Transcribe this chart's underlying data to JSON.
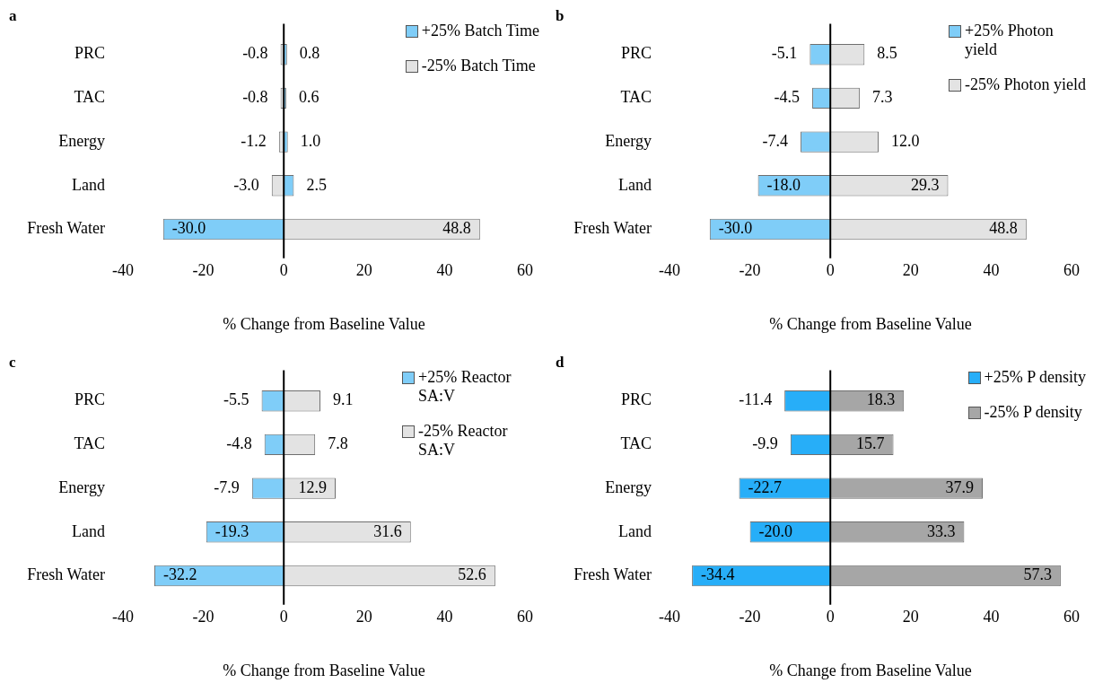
{
  "chart_data": [
    {
      "type": "bar",
      "title": "a",
      "xlabel": "% Change from Baseline Value",
      "orientation": "horizontal",
      "stacked": true,
      "categories": [
        "PRC",
        "TAC",
        "Energy",
        "Land",
        "Fresh Water"
      ],
      "series": [
        {
          "name": "+25% Batch Time",
          "color": "#7fcdf8",
          "values": [
            0.8,
            0.6,
            1.0,
            2.5,
            -30.0
          ],
          "value_labels": [
            "0.8",
            "0.6",
            "1.0",
            "2.5",
            "-30.0"
          ]
        },
        {
          "name": "-25% Batch Time",
          "color": "#e3e3e3",
          "values": [
            -0.8,
            -0.8,
            -1.2,
            -3.0,
            48.8
          ],
          "value_labels": [
            "-0.8",
            "-0.8",
            "-1.2",
            "-3.0",
            "48.8"
          ]
        }
      ],
      "xlim": [
        -40,
        60
      ],
      "xticks": [
        -40,
        -20,
        0,
        20,
        40,
        60
      ],
      "ref_lines": [
        {
          "axis": "x",
          "value": 0,
          "color": "#000000"
        }
      ],
      "grid": false,
      "legend": "top right"
    },
    {
      "type": "bar",
      "title": "b",
      "xlabel": "% Change from Baseline Value",
      "orientation": "horizontal",
      "stacked": true,
      "categories": [
        "PRC",
        "TAC",
        "Energy",
        "Land",
        "Fresh Water"
      ],
      "series": [
        {
          "name": "+25% Photon yield",
          "color": "#7fcdf8",
          "values": [
            -5.1,
            -4.5,
            -7.4,
            -18.0,
            -30.0
          ],
          "value_labels": [
            "-5.1",
            "-4.5",
            "-7.4",
            "-18.0",
            "-30.0"
          ]
        },
        {
          "name": "-25% Photon yield",
          "color": "#e3e3e3",
          "values": [
            8.5,
            7.3,
            12.0,
            29.3,
            48.8
          ],
          "value_labels": [
            "8.5",
            "7.3",
            "12.0",
            "29.3",
            "48.8"
          ]
        }
      ],
      "xlim": [
        -40,
        60
      ],
      "xticks": [
        -40,
        -20,
        0,
        20,
        40,
        60
      ],
      "ref_lines": [
        {
          "axis": "x",
          "value": 0,
          "color": "#000000"
        }
      ],
      "grid": false,
      "legend": "top right"
    },
    {
      "type": "bar",
      "title": "c",
      "xlabel": "% Change from Baseline Value",
      "orientation": "horizontal",
      "stacked": true,
      "categories": [
        "PRC",
        "TAC",
        "Energy",
        "Land",
        "Fresh Water"
      ],
      "series": [
        {
          "name": "+25% Reactor SA:V",
          "color": "#7fcdf8",
          "values": [
            -5.5,
            -4.8,
            -7.9,
            -19.3,
            -32.2
          ],
          "value_labels": [
            "-5.5",
            "-4.8",
            "-7.9",
            "-19.3",
            "-32.2"
          ]
        },
        {
          "name": "-25% Reactor SA:V",
          "color": "#e3e3e3",
          "values": [
            9.1,
            7.8,
            12.9,
            31.6,
            52.6
          ],
          "value_labels": [
            "9.1",
            "7.8",
            "12.9",
            "31.6",
            "52.6"
          ]
        }
      ],
      "xlim": [
        -40,
        60
      ],
      "xticks": [
        -40,
        -20,
        0,
        20,
        40,
        60
      ],
      "ref_lines": [
        {
          "axis": "x",
          "value": 0,
          "color": "#000000"
        }
      ],
      "grid": false,
      "legend": "top right"
    },
    {
      "type": "bar",
      "title": "d",
      "xlabel": "% Change from Baseline Value",
      "orientation": "horizontal",
      "stacked": true,
      "categories": [
        "PRC",
        "TAC",
        "Energy",
        "Land",
        "Fresh Water"
      ],
      "series": [
        {
          "name": "+25% P density",
          "color": "#27aef8",
          "values": [
            -11.4,
            -9.9,
            -22.7,
            -20.0,
            -34.4
          ],
          "value_labels": [
            "-11.4",
            "-9.9",
            "-22.7",
            "-20.0",
            "-34.4"
          ]
        },
        {
          "name": "-25% P density",
          "color": "#a6a6a6",
          "values": [
            18.3,
            15.7,
            37.9,
            33.3,
            57.3
          ],
          "value_labels": [
            "18.3",
            "15.7",
            "37.9",
            "33.3",
            "57.3"
          ]
        }
      ],
      "xlim": [
        -40,
        60
      ],
      "xticks": [
        -40,
        -20,
        0,
        20,
        40,
        60
      ],
      "ref_lines": [
        {
          "axis": "x",
          "value": 0,
          "color": "#000000"
        }
      ],
      "grid": false,
      "legend": "top right"
    }
  ]
}
